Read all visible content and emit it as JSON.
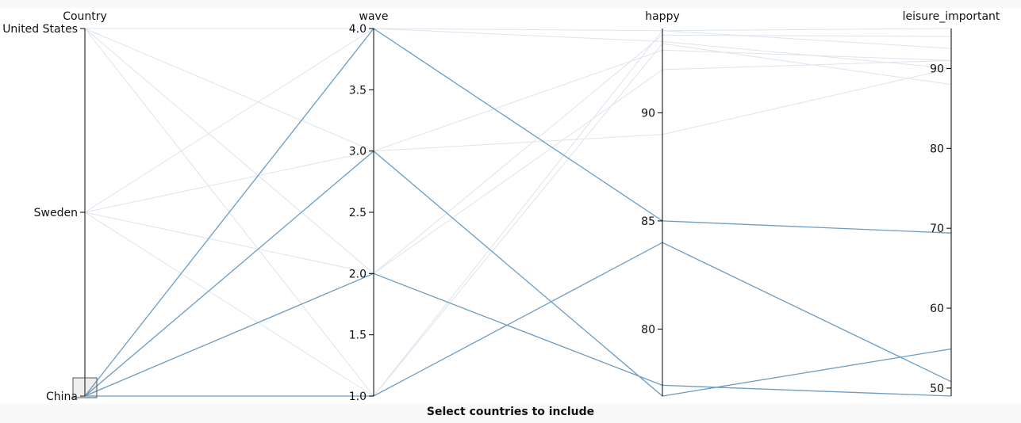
{
  "caption": "Select countries to include",
  "colors": {
    "highlight": "#6b9cc4",
    "faded": "#dde4ec",
    "axis": "#000000"
  },
  "chart_data": {
    "type": "parallel_coordinates",
    "dimensions": [
      {
        "name": "Country",
        "kind": "categorical",
        "categories": [
          "China",
          "Sweden",
          "United States"
        ],
        "tick_labels": [
          "China",
          "Sweden",
          "United States"
        ]
      },
      {
        "name": "wave",
        "kind": "numeric",
        "range": [
          1.0,
          4.0
        ],
        "ticks": [
          "1.0",
          "1.5",
          "2.0",
          "2.5",
          "3.0",
          "3.5",
          "4.0"
        ]
      },
      {
        "name": "happy",
        "kind": "numeric",
        "range": [
          76.9,
          93.9
        ],
        "ticks": [
          "80",
          "85",
          "90"
        ]
      },
      {
        "name": "leisure_important",
        "kind": "numeric",
        "range": [
          49,
          95
        ],
        "ticks": [
          "50",
          "60",
          "70",
          "80",
          "90"
        ]
      }
    ],
    "brush": {
      "dimension": "Country",
      "selected": [
        "China"
      ]
    },
    "records": [
      {
        "Country": "China",
        "wave": 1,
        "happy": 84.0,
        "leisure_important": 50.8,
        "selected": true
      },
      {
        "Country": "China",
        "wave": 2,
        "happy": 77.4,
        "leisure_important": 49.0,
        "selected": true
      },
      {
        "Country": "China",
        "wave": 3,
        "happy": 76.9,
        "leisure_important": 54.9,
        "selected": true
      },
      {
        "Country": "China",
        "wave": 4,
        "happy": 85.0,
        "leisure_important": 69.4,
        "selected": true
      },
      {
        "Country": "Sweden",
        "wave": 1,
        "happy": 93.8,
        "leisure_important": 95.0,
        "selected": false
      },
      {
        "Country": "Sweden",
        "wave": 2,
        "happy": 93.6,
        "leisure_important": 94.0,
        "selected": false
      },
      {
        "Country": "Sweden",
        "wave": 3,
        "happy": 92.9,
        "leisure_important": 91.0,
        "selected": false
      },
      {
        "Country": "Sweden",
        "wave": 4,
        "happy": 93.3,
        "leisure_important": 90.0,
        "selected": false
      },
      {
        "Country": "United States",
        "wave": 1,
        "happy": 93.2,
        "leisure_important": 88.0,
        "selected": false
      },
      {
        "Country": "United States",
        "wave": 2,
        "happy": 92.0,
        "leisure_important": 91.0,
        "selected": false
      },
      {
        "Country": "United States",
        "wave": 3,
        "happy": 89.0,
        "leisure_important": 90.0,
        "selected": false
      },
      {
        "Country": "United States",
        "wave": 4,
        "happy": 93.8,
        "leisure_important": 92.5,
        "selected": false
      }
    ]
  }
}
